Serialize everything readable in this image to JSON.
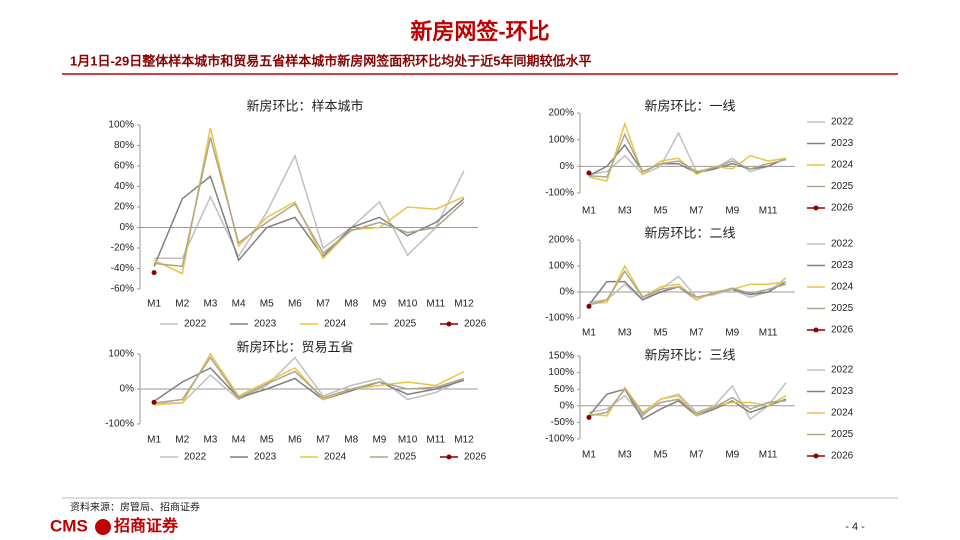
{
  "header": {
    "title": "新房网签-环比",
    "subtitle": "1月1日-29日整体样本城市和贸易五省样本城市新房网签面积环比均处于近5年同期较低水平"
  },
  "footer": {
    "source": "资料来源：房管局、招商证券",
    "logo_latin": "CMS",
    "logo_cn": "招商证券",
    "page": "- 4 -"
  },
  "chart_data": [
    {
      "type": "line",
      "title": "新房环比：样本城市",
      "legend": "bottom",
      "categories": [
        "M1",
        "M2",
        "M3",
        "M4",
        "M5",
        "M6",
        "M7",
        "M8",
        "M9",
        "M10",
        "M11",
        "M12"
      ],
      "ylim": [
        -60,
        100
      ],
      "yticks": [
        {
          "value": 100,
          "label": "100%"
        },
        {
          "value": 80,
          "label": "80%"
        },
        {
          "value": 60,
          "label": "60%"
        },
        {
          "value": 40,
          "label": "40%"
        },
        {
          "value": 20,
          "label": "20%"
        },
        {
          "value": 0,
          "label": "0%"
        },
        {
          "value": -20,
          "label": "-20%"
        },
        {
          "value": -40,
          "label": "-40%"
        },
        {
          "value": -60,
          "label": "-60%"
        }
      ],
      "series": [
        {
          "name": "2022",
          "color": "#c0c0c0",
          "values": [
            -30,
            -30,
            30,
            -28,
            15,
            70,
            -20,
            0,
            25,
            -27,
            0,
            55
          ]
        },
        {
          "name": "2023",
          "color": "#808080",
          "values": [
            -38,
            28,
            50,
            -32,
            0,
            10,
            -28,
            0,
            10,
            -8,
            5,
            28
          ]
        },
        {
          "name": "2024",
          "color": "#e8c547",
          "values": [
            -32,
            -45,
            97,
            -18,
            10,
            25,
            -30,
            -2,
            0,
            20,
            18,
            30
          ]
        },
        {
          "name": "2025",
          "color": "#b0a48a",
          "values": [
            -35,
            -38,
            88,
            -15,
            5,
            23,
            -25,
            -3,
            5,
            -5,
            0,
            25
          ]
        },
        {
          "name": "2026",
          "color": "#8b0000",
          "values": [
            -44,
            null,
            null,
            null,
            null,
            null,
            null,
            null,
            null,
            null,
            null,
            null
          ]
        }
      ]
    },
    {
      "type": "line",
      "title": "新房环比：贸易五省",
      "legend": "bottom",
      "categories": [
        "M1",
        "M2",
        "M3",
        "M4",
        "M5",
        "M6",
        "M7",
        "M8",
        "M9",
        "M10",
        "M11",
        "M12"
      ],
      "ylim": [
        -100,
        100
      ],
      "yticks": [
        {
          "value": 100,
          "label": "100%"
        },
        {
          "value": 0,
          "label": "0%"
        },
        {
          "value": -100,
          "label": "-100%"
        }
      ],
      "series": [
        {
          "name": "2022",
          "color": "#c0c0c0",
          "values": [
            -40,
            -40,
            40,
            -30,
            10,
            90,
            -20,
            10,
            30,
            -30,
            -10,
            30
          ]
        },
        {
          "name": "2023",
          "color": "#808080",
          "values": [
            -35,
            20,
            60,
            -25,
            0,
            30,
            -30,
            -5,
            20,
            -15,
            0,
            25
          ]
        },
        {
          "name": "2024",
          "color": "#e8c547",
          "values": [
            -45,
            -40,
            100,
            -20,
            20,
            60,
            -30,
            0,
            10,
            20,
            10,
            50
          ]
        },
        {
          "name": "2025",
          "color": "#b0a48a",
          "values": [
            -40,
            -30,
            90,
            -25,
            15,
            50,
            -25,
            0,
            20,
            0,
            5,
            30
          ]
        },
        {
          "name": "2026",
          "color": "#8b0000",
          "values": [
            -38,
            null,
            null,
            null,
            null,
            null,
            null,
            null,
            null,
            null,
            null,
            null
          ]
        }
      ]
    },
    {
      "type": "line",
      "title": "新房环比：一线",
      "legend": "right",
      "categories": [
        "M1",
        null,
        "M3",
        null,
        "M5",
        null,
        "M7",
        null,
        "M9",
        null,
        "M11",
        null
      ],
      "ylim": [
        -100,
        200
      ],
      "yticks": [
        {
          "value": 200,
          "label": "200%"
        },
        {
          "value": 100,
          "label": "100%"
        },
        {
          "value": 0,
          "label": "0%"
        },
        {
          "value": -100,
          "label": "-100%"
        }
      ],
      "series": [
        {
          "name": "2022",
          "color": "#c0c0c0",
          "values": [
            -30,
            -20,
            40,
            -30,
            0,
            125,
            -20,
            -10,
            30,
            -20,
            0,
            30
          ]
        },
        {
          "name": "2023",
          "color": "#808080",
          "values": [
            -35,
            0,
            80,
            -20,
            10,
            10,
            -25,
            -10,
            10,
            -10,
            0,
            30
          ]
        },
        {
          "name": "2024",
          "color": "#e8c547",
          "values": [
            -40,
            -55,
            160,
            -30,
            20,
            30,
            -30,
            0,
            -10,
            40,
            20,
            30
          ]
        },
        {
          "name": "2025",
          "color": "#b0a48a",
          "values": [
            -35,
            -40,
            120,
            -20,
            10,
            20,
            -20,
            -5,
            20,
            -10,
            10,
            25
          ]
        },
        {
          "name": "2026",
          "color": "#8b0000",
          "values": [
            -25,
            null,
            null,
            null,
            null,
            null,
            null,
            null,
            null,
            null,
            null,
            null
          ]
        }
      ]
    },
    {
      "type": "line",
      "title": "新房环比：二线",
      "legend": "right",
      "categories": [
        "M1",
        null,
        "M3",
        null,
        "M5",
        null,
        "M7",
        null,
        "M9",
        null,
        "M11",
        null
      ],
      "ylim": [
        -100,
        200
      ],
      "yticks": [
        {
          "value": 200,
          "label": "200%"
        },
        {
          "value": 100,
          "label": "100%"
        },
        {
          "value": 0,
          "label": "0%"
        },
        {
          "value": -100,
          "label": "-100%"
        }
      ],
      "series": [
        {
          "name": "2022",
          "color": "#c0c0c0",
          "values": [
            -40,
            -30,
            30,
            -30,
            10,
            60,
            -20,
            -10,
            10,
            -20,
            0,
            55
          ]
        },
        {
          "name": "2023",
          "color": "#808080",
          "values": [
            -50,
            40,
            40,
            -30,
            0,
            20,
            -30,
            0,
            10,
            -10,
            0,
            40
          ]
        },
        {
          "name": "2024",
          "color": "#e8c547",
          "values": [
            -45,
            -40,
            100,
            -20,
            20,
            30,
            -30,
            0,
            10,
            30,
            30,
            40
          ]
        },
        {
          "name": "2025",
          "color": "#b0a48a",
          "values": [
            -50,
            -30,
            80,
            -20,
            10,
            20,
            -20,
            -5,
            15,
            -5,
            10,
            30
          ]
        },
        {
          "name": "2026",
          "color": "#8b0000",
          "values": [
            -55,
            null,
            null,
            null,
            null,
            null,
            null,
            null,
            null,
            null,
            null,
            null
          ]
        }
      ]
    },
    {
      "type": "line",
      "title": "新房环比：三线",
      "legend": "right",
      "categories": [
        "M1",
        null,
        "M3",
        null,
        "M5",
        null,
        "M7",
        null,
        "M9",
        null,
        "M11",
        null
      ],
      "ylim": [
        -100,
        150
      ],
      "yticks": [
        {
          "value": 150,
          "label": "150%"
        },
        {
          "value": 100,
          "label": "100%"
        },
        {
          "value": 50,
          "label": "50%"
        },
        {
          "value": 0,
          "label": "0%"
        },
        {
          "value": -50,
          "label": "-50%"
        },
        {
          "value": -100,
          "label": "-100%"
        }
      ],
      "series": [
        {
          "name": "2022",
          "color": "#c0c0c0",
          "values": [
            -20,
            -10,
            30,
            -30,
            20,
            35,
            -20,
            0,
            60,
            -40,
            0,
            70
          ]
        },
        {
          "name": "2023",
          "color": "#808080",
          "values": [
            -30,
            35,
            50,
            -40,
            -10,
            15,
            -30,
            -10,
            15,
            -20,
            0,
            20
          ]
        },
        {
          "name": "2024",
          "color": "#e8c547",
          "values": [
            -25,
            -30,
            55,
            -20,
            20,
            30,
            -30,
            0,
            10,
            10,
            0,
            30
          ]
        },
        {
          "name": "2025",
          "color": "#b0a48a",
          "values": [
            -30,
            -20,
            50,
            -25,
            10,
            20,
            -25,
            -5,
            25,
            -10,
            10,
            15
          ]
        },
        {
          "name": "2026",
          "color": "#8b0000",
          "values": [
            -35,
            null,
            null,
            null,
            null,
            null,
            null,
            null,
            null,
            null,
            null,
            null
          ]
        }
      ]
    }
  ]
}
